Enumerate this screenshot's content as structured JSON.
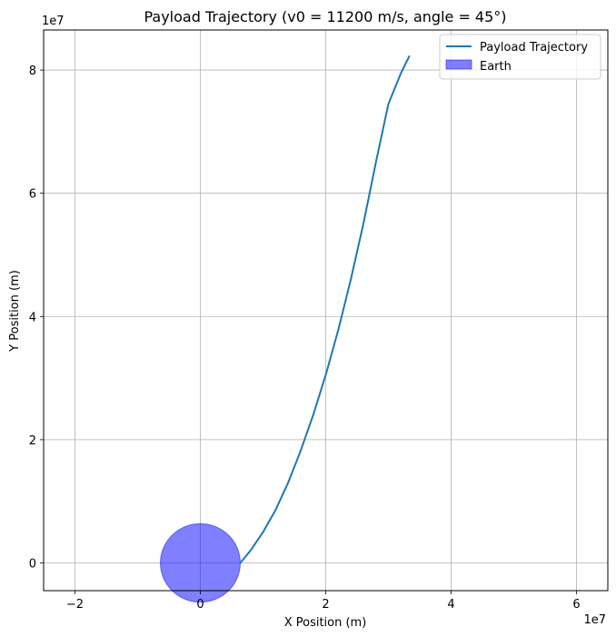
{
  "chart_data": {
    "type": "line",
    "title": "Payload Trajectory (v0 = 11200 m/s, angle = 45°)",
    "xlabel": "X Position (m)",
    "ylabel": "Y Position (m)",
    "x_offset_label": "1e7",
    "y_offset_label": "1e7",
    "xlim": [
      -2.5,
      6.5
    ],
    "ylim": [
      -0.45,
      8.65
    ],
    "x_ticks": [
      -2,
      0,
      2,
      4,
      6
    ],
    "y_ticks": [
      0,
      2,
      4,
      6,
      8
    ],
    "x_tick_labels": [
      "−2",
      "0",
      "2",
      "4",
      "6"
    ],
    "y_tick_labels": [
      "0",
      "2",
      "4",
      "6",
      "8"
    ],
    "grid": true,
    "legend_position": "top-right",
    "series": [
      {
        "name": "Payload Trajectory",
        "color": "#1f77b4",
        "x": [
          0.637,
          0.8,
          1.0,
          1.2,
          1.4,
          1.6,
          1.8,
          2.0,
          2.2,
          2.4,
          2.6,
          2.8,
          3.0,
          3.2,
          3.33
        ],
        "y": [
          0.0,
          0.2,
          0.5,
          0.86,
          1.3,
          1.82,
          2.4,
          3.05,
          3.78,
          4.6,
          5.5,
          6.5,
          7.45,
          7.95,
          8.22
        ]
      }
    ],
    "patches": [
      {
        "name": "Earth",
        "shape": "circle",
        "center": [
          0,
          0
        ],
        "radius": 0.637,
        "color": "#0000ff",
        "alpha": 0.5
      }
    ]
  }
}
